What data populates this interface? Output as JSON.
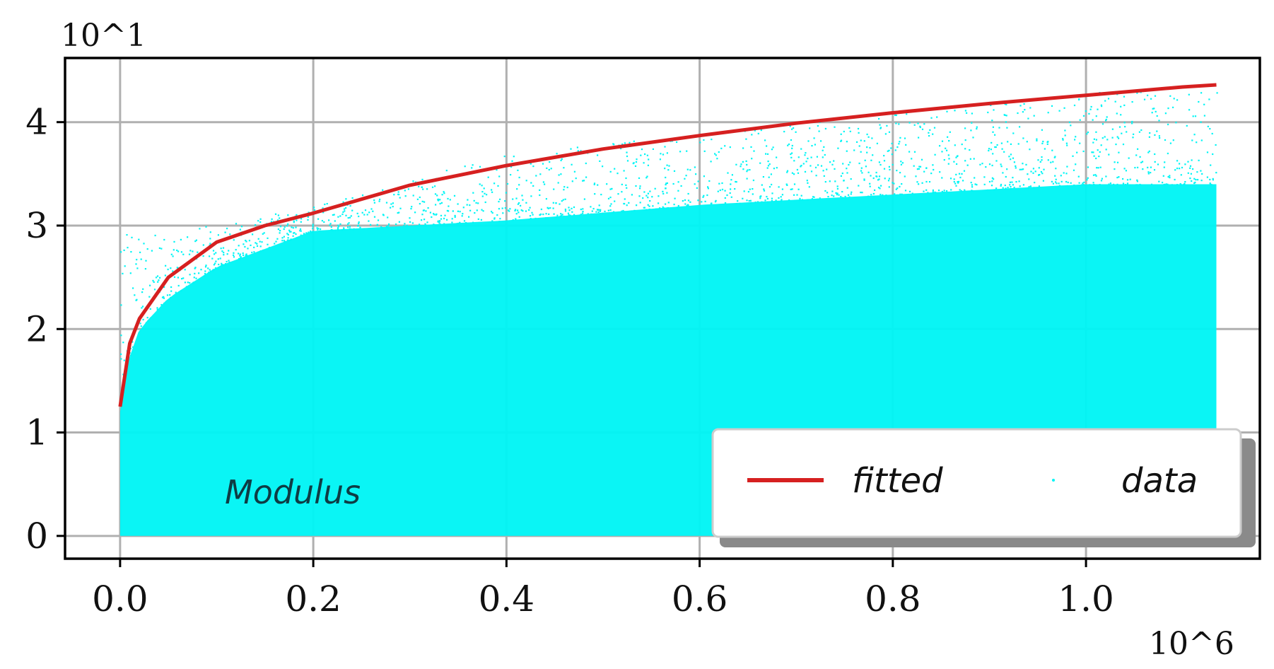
{
  "chart_data": {
    "type": "scatter",
    "x_exponent_label": "10^6",
    "y_exponent_label": "10^1",
    "xlim": [
      -0.057,
      1.18
    ],
    "ylim": [
      -0.22,
      4.62
    ],
    "x_ticks": [
      0.0,
      0.2,
      0.4,
      0.6,
      0.8,
      1.0
    ],
    "x_tick_labels": [
      "0.0",
      "0.2",
      "0.4",
      "0.6",
      "0.8",
      "1.0"
    ],
    "y_ticks": [
      0,
      1,
      2,
      3,
      4
    ],
    "y_tick_labels": [
      "0",
      "1",
      "2",
      "3",
      "4"
    ],
    "grid": true,
    "annotation": "Modulus",
    "legend": {
      "placement": "lower-right",
      "entries": [
        "fitted",
        "data"
      ]
    },
    "series": [
      {
        "name": "fitted",
        "kind": "line",
        "color": "#d62020",
        "x": [
          0.0,
          0.01,
          0.02,
          0.05,
          0.1,
          0.15,
          0.2,
          0.3,
          0.4,
          0.5,
          0.6,
          0.7,
          0.8,
          0.9,
          1.0,
          1.1,
          1.135
        ],
        "y": [
          1.25,
          1.86,
          2.1,
          2.5,
          2.84,
          3.0,
          3.12,
          3.39,
          3.58,
          3.74,
          3.87,
          3.99,
          4.09,
          4.18,
          4.26,
          4.34,
          4.36
        ]
      },
      {
        "name": "data",
        "kind": "scatter",
        "color": "#00f5f5",
        "x_range": [
          0.0,
          1.135
        ],
        "y_min": 0,
        "upper_envelope": {
          "x": [
            0.0,
            0.005,
            0.02,
            0.05,
            0.1,
            0.2,
            0.4,
            0.6,
            0.8,
            1.0,
            1.135
          ],
          "y": [
            1.2,
            1.6,
            2.0,
            2.3,
            2.6,
            2.95,
            3.05,
            3.2,
            3.3,
            3.4,
            3.4
          ]
        },
        "outlier_max": {
          "x": [
            0.1,
            0.2,
            0.4,
            0.6,
            0.8,
            1.0,
            1.135
          ],
          "y": [
            3.0,
            3.2,
            3.7,
            3.9,
            4.1,
            4.3,
            4.3
          ]
        }
      }
    ]
  }
}
